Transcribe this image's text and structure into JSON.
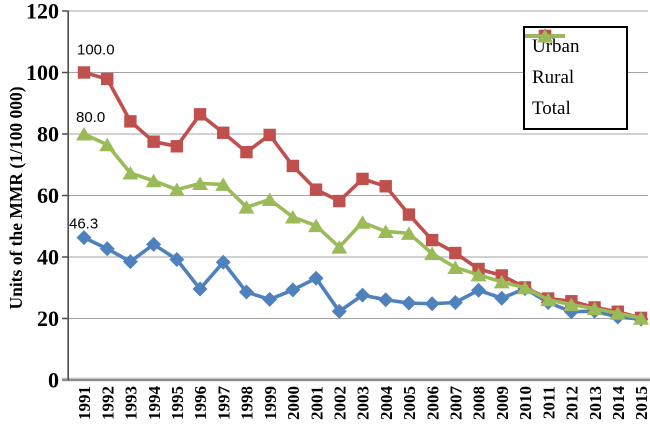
{
  "chart_data": {
    "type": "line",
    "title": "",
    "xlabel": "",
    "ylabel": "Units of the MMR (1/100 000)",
    "ylim": [
      0,
      120
    ],
    "yticks": [
      0,
      20,
      40,
      60,
      80,
      100,
      120
    ],
    "grid": "horizontal",
    "legend_position": "top-right-inside",
    "categories": [
      "1991",
      "1992",
      "1993",
      "1994",
      "1995",
      "1996",
      "1997",
      "1998",
      "1999",
      "2000",
      "2001",
      "2002",
      "2003",
      "2004",
      "2005",
      "2006",
      "2007",
      "2008",
      "2009",
      "2010",
      "2011",
      "2012",
      "2013",
      "2014",
      "2015"
    ],
    "series": [
      {
        "name": "Urban",
        "marker": "diamond",
        "color": "#4F81BD",
        "values": [
          46.3,
          42.7,
          38.5,
          44.1,
          39.2,
          29.6,
          38.3,
          28.6,
          26.2,
          29.3,
          33.1,
          22.3,
          27.6,
          26.1,
          25.0,
          24.8,
          25.2,
          29.2,
          26.6,
          29.7,
          25.2,
          22.2,
          22.4,
          20.5,
          19.8
        ]
      },
      {
        "name": "Rural",
        "marker": "square",
        "color": "#C0504D",
        "values": [
          100.0,
          97.9,
          84.1,
          77.5,
          76.0,
          86.4,
          80.4,
          74.1,
          79.7,
          69.6,
          61.9,
          58.2,
          65.4,
          63.0,
          53.8,
          45.5,
          41.3,
          36.1,
          34.0,
          30.1,
          26.5,
          25.6,
          23.6,
          22.2,
          20.2
        ]
      },
      {
        "name": "Total",
        "marker": "triangle",
        "color": "#9BBB59",
        "values": [
          80.0,
          76.5,
          67.3,
          64.8,
          61.9,
          63.9,
          63.6,
          56.2,
          58.7,
          53.0,
          50.2,
          43.2,
          51.3,
          48.3,
          47.7,
          41.1,
          36.6,
          34.2,
          31.9,
          30.0,
          26.1,
          24.5,
          23.2,
          21.7,
          20.1
        ]
      }
    ],
    "annotations": [
      {
        "text": "100.0",
        "series": "Rural",
        "category": "1991"
      },
      {
        "text": "80.0",
        "series": "Total",
        "category": "1991"
      },
      {
        "text": "46.3",
        "series": "Urban",
        "category": "1991"
      }
    ]
  },
  "colors": {
    "gridline": "#A3A3A3",
    "axis_dark": "#4D4D4D",
    "axis_gray": "#8C8C8C",
    "axis_highlight": "#C9C9C9",
    "legend_border": "#000000",
    "text": "#000000",
    "background": "#FFFFFF"
  }
}
